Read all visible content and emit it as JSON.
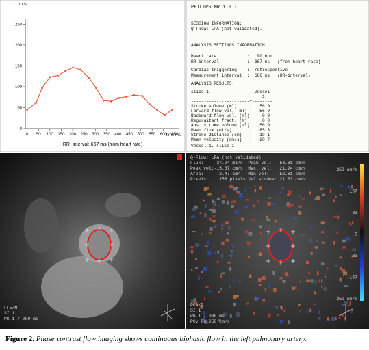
{
  "chart_data": {
    "type": "line",
    "y_label": "ml/s",
    "x_label": "time ms",
    "caption": "RR- interval: 667 ms (from heart rate)",
    "x": [
      0,
      40,
      66,
      100,
      136,
      169,
      202,
      235,
      271,
      304,
      337,
      370,
      404,
      437,
      470,
      506,
      539,
      572,
      605,
      639
    ],
    "series": [
      {
        "color": "#e05a3c",
        "values": [
          45,
          62,
          97,
          123,
          127,
          138,
          146,
          141,
          122,
          97,
          67,
          65,
          73,
          76,
          80,
          78,
          58,
          44,
          32,
          45
        ]
      }
    ],
    "xlim": [
      -8,
      670
    ],
    "ylim": [
      0,
      262
    ],
    "xticks": [
      0,
      50,
      100,
      150,
      200,
      250,
      300,
      350,
      400,
      450,
      500,
      550,
      600,
      650
    ],
    "yticks": [
      0,
      50,
      100,
      150,
      200,
      250
    ]
  },
  "report": {
    "header": "PHILIPS MR 1.0 T",
    "sections": [
      [
        "SESSION INFORMATION:",
        "Q-Flow: LPA (not validated)."
      ],
      [
        "ANALYSIS SETTINGS INFORMATION:"
      ],
      [
        "Heart rate            :   90 bpm",
        "RR-interval           :  667 ms   (from heart rate)"
      ],
      [
        "Cardiac triggering    :  retrospective",
        "Measurement interval  :  666 ms   (RR-interval)"
      ],
      [
        "ANALYSIS RESULTS:"
      ],
      [
        "slice 1                | Vessel",
        "                       |    1",
        "-----------------------+--------",
        "Stroke volume (ml)     |   56.9",
        "Forward flow vol. (ml) |   56.9",
        "Backward flow vol. (ml)|    0.0",
        "Regurgitant fract. (%) |    0.0",
        "Abs. stroke volume (ml)|   56.9",
        "Mean flux (ml/s)       |   85.3",
        "Stroke distance (cm)   |   19.1",
        "Mean velocity (cm/s)   |   28.7"
      ],
      [
        "Vessel 1, slice 1"
      ]
    ]
  },
  "left_image": {
    "labels": [
      "FFE/M",
      "SI 1",
      "Ph 1 / 000 ms"
    ]
  },
  "right_image": {
    "header": [
      "Q-Flow: LPA (not validated)",
      "Flux:    -37.94 ml/s  Peak vel:  -58.81 cm/s",
      "Peak vel:-15.37 cm/s  Max. vel:   21.24 cm/s",
      "Area:      2.47 cm²   Min vel:   -52.81 cm/s",
      "Pixels:    158 pixels Vel stddev: 21.63 cm/s"
    ],
    "scale": [
      "250 cm/s",
      "167",
      "83",
      "0",
      "-83",
      "-167",
      "-250 cm/s"
    ],
    "labels": [
      "PCA/P",
      "SI 1",
      "Ph 1 / 000 ms",
      "PCv RL 250 cm/s"
    ]
  },
  "figure_caption": {
    "label": "Figure 2.",
    "text": "Phase contrast flow imaging shows continuous biphasic flow in the left pulmonary artery."
  }
}
